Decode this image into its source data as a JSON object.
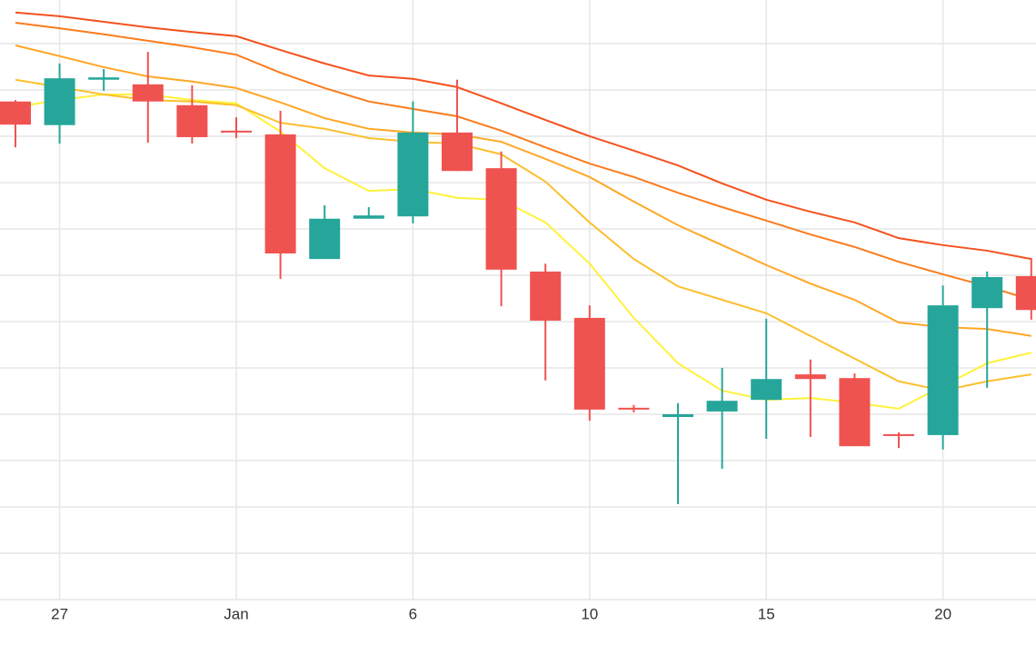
{
  "chart_data": {
    "type": "candlestick",
    "categories": [
      null,
      "27",
      null,
      null,
      null,
      "Jan",
      null,
      null,
      null,
      "6",
      null,
      null,
      null,
      "10",
      null,
      null,
      null,
      "15",
      null,
      null,
      null,
      "20",
      null,
      null
    ],
    "open": [
      107.5,
      102.4,
      112.2,
      111.2,
      106.7,
      101.2,
      100.4,
      73.5,
      82.2,
      82.7,
      100.8,
      93.1,
      70.8,
      60.8,
      41.4,
      39.4,
      40.6,
      43.1,
      48.6,
      47.8,
      35.7,
      35.5,
      62.9,
      69.8
    ],
    "high": [
      107.8,
      115.7,
      114.5,
      118.2,
      111.0,
      104.1,
      105.5,
      85.1,
      84.7,
      107.5,
      112.2,
      96.7,
      72.5,
      63.5,
      42.0,
      42.4,
      50.0,
      60.6,
      51.8,
      48.8,
      36.1,
      67.8,
      70.8,
      73.7
    ],
    "low": [
      97.6,
      98.4,
      109.8,
      98.6,
      98.4,
      99.6,
      69.2,
      73.5,
      82.2,
      81.2,
      92.5,
      63.3,
      47.3,
      38.6,
      40.4,
      20.6,
      28.2,
      34.7,
      35.1,
      33.1,
      32.7,
      32.4,
      45.7,
      60.4
    ],
    "close": [
      102.5,
      112.5,
      112.7,
      107.5,
      99.8,
      100.8,
      74.7,
      82.2,
      82.9,
      100.8,
      92.5,
      71.2,
      60.2,
      41.0,
      41.0,
      40.0,
      42.9,
      47.6,
      47.6,
      33.1,
      35.3,
      63.5,
      69.6,
      62.5
    ],
    "up_color": "#26a69a",
    "down_color": "#ef5350",
    "lines": [
      {
        "color": "#fff23a",
        "values": [
          106.3,
          107.8,
          109.0,
          109.0,
          107.8,
          107.1,
          101.0,
          93.1,
          88.2,
          88.6,
          86.7,
          86.3,
          81.4,
          72.5,
          60.8,
          51.0,
          45.1,
          43.1,
          43.5,
          42.5,
          41.2,
          46.1,
          51.0,
          53.3
        ]
      },
      {
        "color": "#fbc02d",
        "values": [
          112.2,
          110.6,
          109.0,
          107.8,
          107.5,
          106.7,
          102.9,
          101.6,
          99.6,
          98.8,
          98.4,
          96.1,
          90.2,
          81.4,
          73.5,
          67.6,
          64.7,
          61.8,
          56.9,
          52.0,
          47.1,
          45.1,
          47.1,
          48.6
        ]
      },
      {
        "color": "#ffa726",
        "values": [
          119.6,
          117.3,
          114.9,
          112.9,
          111.8,
          110.4,
          107.3,
          103.9,
          101.6,
          100.8,
          100.4,
          98.8,
          95.1,
          91.2,
          85.9,
          80.8,
          76.5,
          72.2,
          68.2,
          64.7,
          59.8,
          58.8,
          58.4,
          56.9
        ]
      },
      {
        "color": "#fb7c1c",
        "values": [
          124.5,
          123.3,
          122.0,
          120.6,
          119.2,
          117.6,
          113.7,
          110.4,
          107.5,
          105.9,
          104.3,
          101.2,
          97.6,
          94.1,
          91.2,
          87.8,
          84.7,
          81.8,
          78.8,
          76.1,
          72.9,
          70.2,
          67.6,
          64.7
        ]
      },
      {
        "color": "#f4511e",
        "values": [
          126.7,
          125.9,
          124.7,
          123.5,
          122.5,
          121.6,
          118.6,
          115.7,
          113.1,
          112.4,
          110.6,
          107.1,
          103.5,
          100.0,
          96.9,
          93.7,
          89.8,
          86.3,
          83.7,
          81.4,
          78.0,
          76.5,
          75.3,
          73.5
        ]
      }
    ],
    "ylim": [
      0,
      129.4
    ],
    "yticks": [
      0,
      10,
      20,
      30,
      40,
      50,
      60,
      70,
      80,
      90,
      100,
      110,
      120
    ],
    "grid": true
  }
}
